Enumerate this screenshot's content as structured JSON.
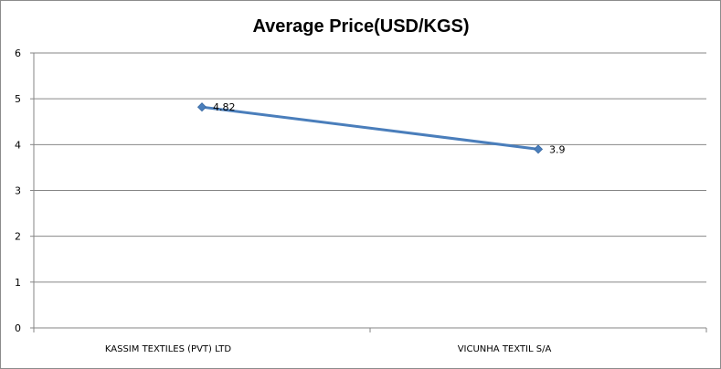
{
  "chart_data": {
    "type": "line",
    "title": "Average Price(USD/KGS)",
    "xlabel": "",
    "ylabel": "",
    "categories": [
      "KASSIM TEXTILES (PVT) LTD",
      "VICUNHA TEXTIL S/A"
    ],
    "series": [
      {
        "values": [
          4.82,
          3.9
        ],
        "data_labels": [
          "4.82",
          "3.9"
        ]
      }
    ],
    "ylim": [
      0,
      6
    ],
    "yticks": [
      "0",
      "1",
      "2",
      "3",
      "4",
      "5",
      "6"
    ],
    "grid": true,
    "legend": "none",
    "colors": {
      "line": "#4a7ebb",
      "marker": "#4a7ebb",
      "grid": "#868686",
      "axis": "#868686"
    }
  }
}
